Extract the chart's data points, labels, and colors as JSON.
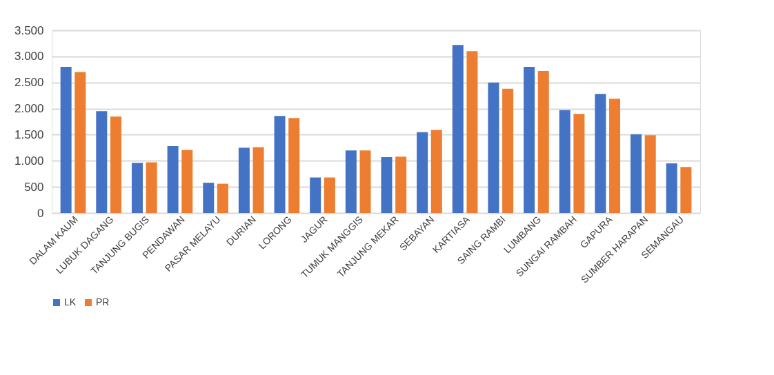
{
  "chart_data": {
    "type": "bar",
    "categories": [
      "DALAM KAUM",
      "LUBUK DAGANG",
      "TANJUNG BUGIS",
      "PENDAWAN",
      "PASAR MELAYU",
      "DURIAN",
      "LORONG",
      "JAGUR",
      "TUMUK MANGGIS",
      "TANJUNG MEKAR",
      "SEBAYAN",
      "KARTIASA",
      "SAING RAMBI",
      "LUMBANG",
      "SUNGAI RAMBAH",
      "GAPURA",
      "SUMBER HARAPAN",
      "SEMANGAU"
    ],
    "series": [
      {
        "name": "LK",
        "color": "#4472c4",
        "values": [
          2800,
          1950,
          960,
          1280,
          580,
          1250,
          1860,
          680,
          1200,
          1070,
          1550,
          3220,
          2500,
          2800,
          1970,
          2280,
          1510,
          950
        ]
      },
      {
        "name": "PR",
        "color": "#ed7d31",
        "values": [
          2700,
          1850,
          970,
          1210,
          560,
          1260,
          1820,
          680,
          1200,
          1080,
          1590,
          3100,
          2380,
          2720,
          1900,
          2190,
          1490,
          880
        ]
      }
    ],
    "ylim": [
      0,
      3500
    ],
    "yticks": [
      0,
      500,
      {
        "value": 1000,
        "label": "1.000"
      },
      {
        "value": 1500,
        "label": "1.500"
      },
      {
        "value": 2000,
        "label": "2.000"
      },
      {
        "value": 2500,
        "label": "2.500"
      },
      {
        "value": 3000,
        "label": "3.000"
      },
      {
        "value": 3500,
        "label": "3.500"
      }
    ],
    "grid": "y",
    "legend": "bottom"
  }
}
